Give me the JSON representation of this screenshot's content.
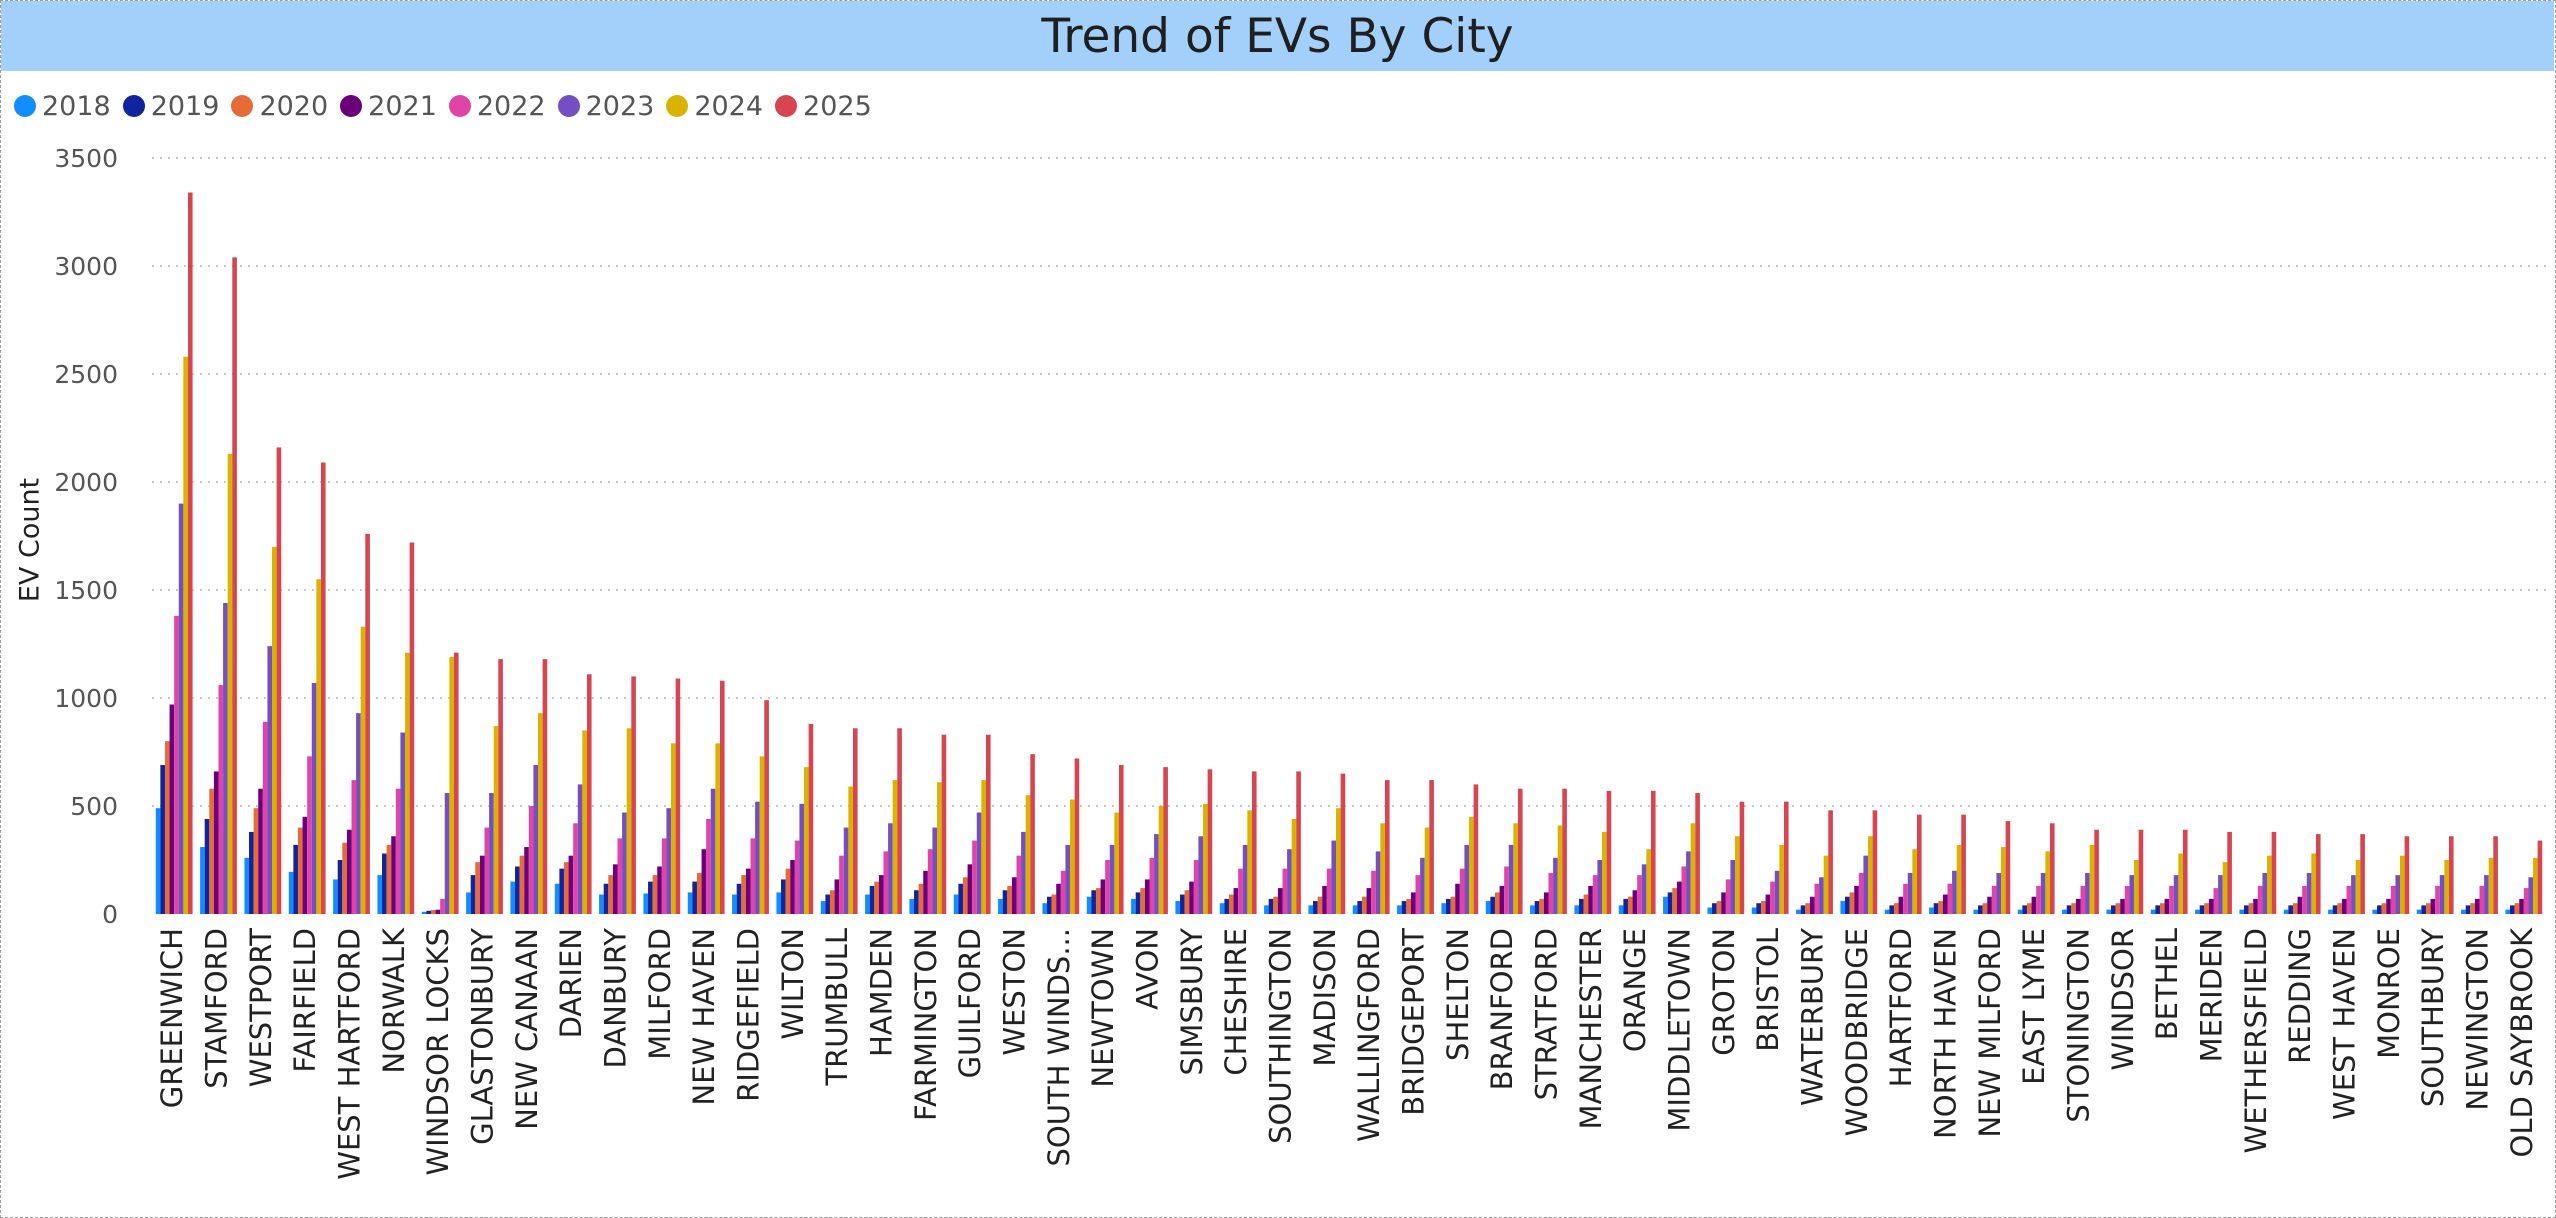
{
  "chart_data": {
    "type": "bar",
    "title": "Trend of EVs By City",
    "xlabel": "",
    "ylabel": "EV Count",
    "ylim": [
      0,
      3500
    ],
    "yticks": [
      "0",
      "500",
      "1000",
      "1500",
      "2000",
      "2500",
      "3000",
      "3500"
    ],
    "grid": "horizontal dotted",
    "legend": "top-left",
    "categories": [
      "GREENWICH",
      "STAMFORD",
      "WESTPORT",
      "FAIRFIELD",
      "WEST HARTFORD",
      "NORWALK",
      "WINDSOR LOCKS",
      "GLASTONBURY",
      "NEW CANAAN",
      "DARIEN",
      "DANBURY",
      "MILFORD",
      "NEW HAVEN",
      "RIDGEFIELD",
      "WILTON",
      "TRUMBULL",
      "HAMDEN",
      "FARMINGTON",
      "GUILFORD",
      "WESTON",
      "SOUTH WINDS...",
      "NEWTOWN",
      "AVON",
      "SIMSBURY",
      "CHESHIRE",
      "SOUTHINGTON",
      "MADISON",
      "WALLINGFORD",
      "BRIDGEPORT",
      "SHELTON",
      "BRANFORD",
      "STRATFORD",
      "MANCHESTER",
      "ORANGE",
      "MIDDLETOWN",
      "GROTON",
      "BRISTOL",
      "WATERBURY",
      "WOODBRIDGE",
      "HARTFORD",
      "NORTH HAVEN",
      "NEW MILFORD",
      "EAST LYME",
      "STONINGTON",
      "WINDSOR",
      "BETHEL",
      "MERIDEN",
      "WETHERSFIELD",
      "REDDING",
      "WEST HAVEN",
      "MONROE",
      "SOUTHBURY",
      "NEWINGTON",
      "OLD SAYBROOK"
    ],
    "series": [
      {
        "name": "2018",
        "color": "#118dff",
        "values": [
          490,
          310,
          260,
          195,
          160,
          180,
          10,
          100,
          150,
          140,
          90,
          95,
          100,
          90,
          100,
          60,
          90,
          70,
          90,
          70,
          50,
          80,
          70,
          60,
          50,
          40,
          40,
          40,
          40,
          50,
          60,
          40,
          40,
          40,
          80,
          30,
          30,
          20,
          60,
          20,
          30,
          20,
          20,
          20,
          20,
          20,
          20,
          20,
          20,
          20,
          20,
          20,
          20,
          20
        ]
      },
      {
        "name": "2019",
        "color": "#12239e",
        "values": [
          690,
          440,
          380,
          320,
          250,
          280,
          15,
          180,
          220,
          210,
          140,
          150,
          150,
          140,
          160,
          90,
          130,
          110,
          140,
          110,
          80,
          110,
          100,
          90,
          70,
          70,
          60,
          60,
          60,
          70,
          80,
          60,
          70,
          70,
          100,
          50,
          50,
          40,
          80,
          40,
          50,
          40,
          40,
          40,
          40,
          40,
          40,
          40,
          40,
          40,
          40,
          40,
          40,
          40
        ]
      },
      {
        "name": "2020",
        "color": "#e66c37",
        "values": [
          800,
          580,
          490,
          400,
          330,
          320,
          18,
          240,
          270,
          240,
          180,
          180,
          190,
          180,
          210,
          110,
          150,
          140,
          170,
          130,
          90,
          120,
          120,
          110,
          90,
          80,
          80,
          80,
          70,
          80,
          100,
          70,
          90,
          80,
          120,
          60,
          60,
          50,
          100,
          50,
          60,
          50,
          50,
          50,
          50,
          50,
          50,
          50,
          50,
          50,
          50,
          50,
          50,
          50
        ]
      },
      {
        "name": "2021",
        "color": "#6b007b",
        "values": [
          970,
          660,
          580,
          450,
          390,
          360,
          20,
          270,
          310,
          270,
          230,
          220,
          300,
          210,
          250,
          160,
          180,
          200,
          230,
          170,
          140,
          160,
          160,
          150,
          120,
          120,
          130,
          120,
          100,
          140,
          130,
          100,
          130,
          110,
          150,
          100,
          90,
          80,
          130,
          80,
          90,
          80,
          80,
          70,
          70,
          70,
          70,
          70,
          80,
          70,
          70,
          70,
          70,
          70
        ]
      },
      {
        "name": "2022",
        "color": "#e044a7",
        "values": [
          1380,
          1060,
          890,
          730,
          620,
          580,
          70,
          400,
          500,
          420,
          350,
          350,
          440,
          350,
          340,
          270,
          290,
          300,
          340,
          270,
          200,
          250,
          260,
          250,
          210,
          210,
          210,
          200,
          180,
          210,
          220,
          190,
          180,
          180,
          220,
          160,
          150,
          140,
          190,
          140,
          140,
          130,
          130,
          130,
          130,
          130,
          120,
          130,
          130,
          130,
          130,
          130,
          130,
          120
        ]
      },
      {
        "name": "2023",
        "color": "#744ec2",
        "values": [
          1900,
          1440,
          1240,
          1070,
          930,
          840,
          560,
          560,
          690,
          600,
          470,
          490,
          580,
          520,
          510,
          400,
          420,
          400,
          470,
          380,
          320,
          320,
          370,
          360,
          320,
          300,
          340,
          290,
          260,
          320,
          320,
          260,
          250,
          230,
          290,
          250,
          200,
          170,
          270,
          190,
          200,
          190,
          190,
          190,
          180,
          180,
          180,
          190,
          190,
          180,
          180,
          180,
          180,
          170
        ]
      },
      {
        "name": "2024",
        "color": "#d9b300",
        "values": [
          2580,
          2130,
          1700,
          1550,
          1330,
          1210,
          1190,
          870,
          930,
          850,
          860,
          790,
          790,
          730,
          680,
          590,
          620,
          610,
          620,
          550,
          530,
          470,
          500,
          510,
          480,
          440,
          490,
          420,
          400,
          450,
          420,
          410,
          380,
          300,
          420,
          360,
          320,
          270,
          360,
          300,
          320,
          310,
          290,
          320,
          250,
          280,
          240,
          270,
          280,
          250,
          270,
          250,
          260,
          260
        ]
      },
      {
        "name": "2025",
        "color": "#d64550",
        "values": [
          3340,
          3040,
          2160,
          2090,
          1760,
          1720,
          1210,
          1180,
          1180,
          1110,
          1100,
          1090,
          1080,
          990,
          880,
          860,
          860,
          830,
          830,
          740,
          720,
          690,
          680,
          670,
          660,
          660,
          650,
          620,
          620,
          600,
          580,
          580,
          570,
          570,
          560,
          520,
          520,
          480,
          480,
          460,
          460,
          430,
          420,
          390,
          390,
          390,
          380,
          380,
          370,
          370,
          360,
          360,
          360,
          340
        ]
      }
    ]
  }
}
